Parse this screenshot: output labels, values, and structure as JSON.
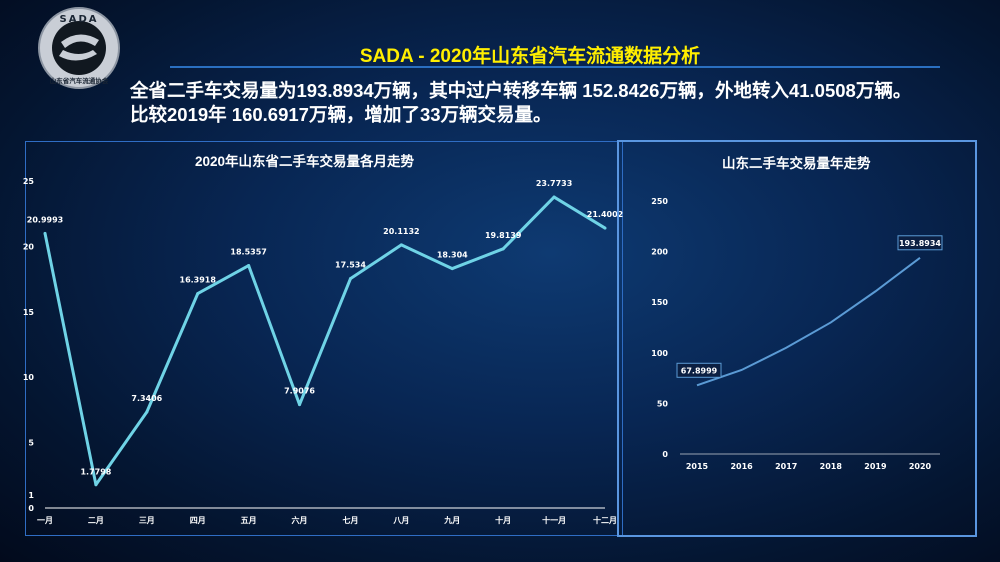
{
  "logo": {
    "top_text": "SADA",
    "bottom_text": "山东省汽车流通协会"
  },
  "header": {
    "title": "SADA -  2020年山东省汽车流通数据分析",
    "line1": "全省二手车交易量为193.8934万辆，其中过户转移车辆 152.8426万辆，外地转入41.0508万辆。",
    "line2": "比较2019年 160.6917万辆，增加了33万辆交易量。"
  },
  "chart_data": [
    {
      "type": "line",
      "title": "2020年山东省二手车交易量各月走势",
      "categories": [
        "一月",
        "二月",
        "三月",
        "四月",
        "五月",
        "六月",
        "七月",
        "八月",
        "九月",
        "十月",
        "十一月",
        "十二月"
      ],
      "values": [
        20.9993,
        1.7798,
        7.3406,
        16.3918,
        18.5357,
        7.9076,
        17.534,
        20.1132,
        18.304,
        19.8139,
        23.7733,
        21.4002
      ],
      "labels": [
        "20.9993",
        "1.7798",
        "7.3406",
        "16.3918",
        "18.5357",
        "7.9076",
        "17.534",
        "20.1132",
        "18.304",
        "19.8139",
        "23.7733",
        "21.4002"
      ],
      "y_ticks": [
        "0",
        "1",
        "5",
        "10",
        "15",
        "20",
        "25"
      ],
      "ylim": [
        0,
        25
      ],
      "color": "#6fd3e6"
    },
    {
      "type": "line",
      "title": "山东二手车交易量年走势",
      "categories": [
        "2015",
        "2016",
        "2017",
        "2018",
        "2019",
        "2020"
      ],
      "values": [
        67.8999,
        83,
        105,
        130,
        160.6917,
        193.8934
      ],
      "labels": [
        {
          "index": 0,
          "text": "67.8999"
        },
        {
          "index": 5,
          "text": "193.8934"
        }
      ],
      "y_ticks": [
        "0",
        "50",
        "100",
        "150",
        "200",
        "250"
      ],
      "ylim": [
        0,
        250
      ],
      "color": "#5b9bd5"
    }
  ]
}
